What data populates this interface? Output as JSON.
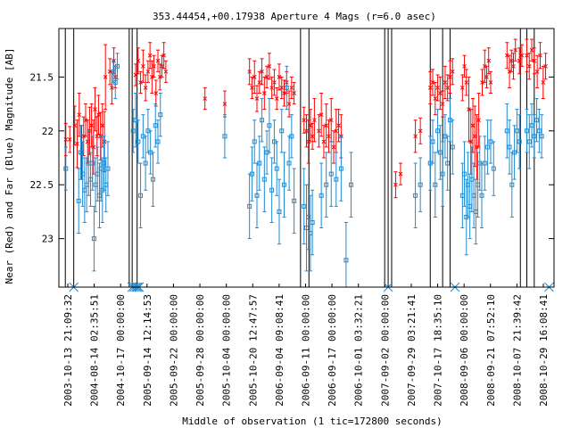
{
  "chart_data": {
    "type": "scatter",
    "title": "353.44454,+00.17938   Aperture 4 Mags (r=6.0 asec)",
    "xlabel": "Middle of observation (1 tic=172800 seconds)",
    "ylabel": "Near (Red) and Far (Blue) Magnitude [AB]",
    "y_inverted": true,
    "ylim": [
      23.45,
      21.05
    ],
    "y_ticks": [
      21.5,
      22,
      22.5,
      23
    ],
    "y_tick_labels": [
      "21.5",
      "22",
      "22.5",
      "23"
    ],
    "x_tick_labels": [
      "2003-10-13 21:09:32",
      "2004-08-14 02:35:51",
      "2004-10-17 00:00:00",
      "2005-09-14 12:14:53",
      "2005-09-22 00:00:00",
      "2005-09-28 00:00:00",
      "2005-10-04 00:00:00",
      "2005-10-20 12:47:57",
      "2006-09-04 09:08:41",
      "2006-09-11 00:00:00",
      "2006-09-17 00:00:00",
      "2006-10-01 03:32:21",
      "2007-09-02 00:00:00",
      "2007-09-29 03:21:41",
      "2007-10-17 18:35:10",
      "2008-09-06 00:00:00",
      "2008-09-21 07:52:10",
      "2008-10-07 21:39:42",
      "2008-10-29 16:08:41"
    ],
    "series": [
      {
        "name": "Near (Red)",
        "color": "#ff0000",
        "marker": "x",
        "points": [
          [
            0.014,
            22.08,
            0.15
          ],
          [
            0.022,
            22.08,
            0.12
          ],
          [
            0.032,
            21.95,
            0.18
          ],
          [
            0.037,
            22.12,
            0.22
          ],
          [
            0.041,
            21.85,
            0.2
          ],
          [
            0.046,
            22.2,
            0.25
          ],
          [
            0.05,
            22.05,
            0.18
          ],
          [
            0.054,
            21.9,
            0.15
          ],
          [
            0.058,
            22.1,
            0.2
          ],
          [
            0.062,
            22.0,
            0.22
          ],
          [
            0.066,
            21.95,
            0.2
          ],
          [
            0.07,
            22.15,
            0.25
          ],
          [
            0.073,
            21.8,
            0.2
          ],
          [
            0.077,
            22.05,
            0.18
          ],
          [
            0.08,
            21.85,
            0.18
          ],
          [
            0.084,
            22.05,
            0.22
          ],
          [
            0.088,
            21.95,
            0.2
          ],
          [
            0.092,
            22.1,
            0.28
          ],
          [
            0.094,
            21.5,
            0.3
          ],
          [
            0.103,
            21.45,
            0.12
          ],
          [
            0.107,
            21.6,
            0.15
          ],
          [
            0.111,
            21.35,
            0.12
          ],
          [
            0.114,
            21.5,
            0.1
          ],
          [
            0.155,
            21.48,
            0.1
          ],
          [
            0.16,
            21.35,
            0.12
          ],
          [
            0.165,
            21.55,
            0.1
          ],
          [
            0.17,
            21.4,
            0.15
          ],
          [
            0.175,
            21.6,
            0.12
          ],
          [
            0.18,
            21.45,
            0.1
          ],
          [
            0.184,
            21.3,
            0.12
          ],
          [
            0.188,
            21.5,
            0.15
          ],
          [
            0.192,
            21.4,
            0.1
          ],
          [
            0.196,
            21.65,
            0.12
          ],
          [
            0.2,
            21.35,
            0.1
          ],
          [
            0.204,
            21.5,
            0.12
          ],
          [
            0.208,
            21.4,
            0.1
          ],
          [
            0.212,
            21.3,
            0.12
          ],
          [
            0.216,
            21.45,
            0.1
          ],
          [
            0.295,
            21.7,
            0.1
          ],
          [
            0.335,
            21.75,
            0.12
          ],
          [
            0.385,
            21.45,
            0.12
          ],
          [
            0.39,
            21.6,
            0.1
          ],
          [
            0.395,
            21.5,
            0.15
          ],
          [
            0.4,
            21.7,
            0.12
          ],
          [
            0.405,
            21.55,
            0.1
          ],
          [
            0.41,
            21.45,
            0.12
          ],
          [
            0.415,
            21.65,
            0.15
          ],
          [
            0.42,
            21.5,
            0.1
          ],
          [
            0.425,
            21.4,
            0.12
          ],
          [
            0.43,
            21.6,
            0.1
          ],
          [
            0.435,
            21.55,
            0.12
          ],
          [
            0.44,
            21.7,
            0.1
          ],
          [
            0.445,
            21.5,
            0.12
          ],
          [
            0.45,
            21.6,
            0.1
          ],
          [
            0.455,
            21.65,
            0.12
          ],
          [
            0.46,
            21.55,
            0.1
          ],
          [
            0.465,
            21.75,
            0.12
          ],
          [
            0.47,
            21.6,
            0.1
          ],
          [
            0.475,
            21.65,
            0.1
          ],
          [
            0.495,
            21.9,
            0.12
          ],
          [
            0.5,
            22.0,
            0.15
          ],
          [
            0.504,
            22.1,
            0.2
          ],
          [
            0.508,
            21.95,
            0.15
          ],
          [
            0.512,
            22.05,
            0.12
          ],
          [
            0.516,
            21.9,
            0.2
          ],
          [
            0.525,
            22.0,
            0.15
          ],
          [
            0.53,
            21.85,
            0.2
          ],
          [
            0.535,
            22.1,
            0.15
          ],
          [
            0.54,
            21.95,
            0.2
          ],
          [
            0.545,
            22.05,
            0.15
          ],
          [
            0.55,
            21.9,
            0.2
          ],
          [
            0.555,
            22.15,
            0.15
          ],
          [
            0.56,
            22.0,
            0.2
          ],
          [
            0.565,
            21.95,
            0.15
          ],
          [
            0.57,
            22.05,
            0.2
          ],
          [
            0.68,
            22.5,
            0.12
          ],
          [
            0.69,
            22.4,
            0.1
          ],
          [
            0.72,
            22.05,
            0.15
          ],
          [
            0.73,
            22.0,
            0.12
          ],
          [
            0.75,
            21.6,
            0.15
          ],
          [
            0.755,
            21.55,
            0.12
          ],
          [
            0.76,
            21.7,
            0.15
          ],
          [
            0.765,
            21.6,
            0.12
          ],
          [
            0.77,
            21.65,
            0.15
          ],
          [
            0.775,
            21.75,
            0.12
          ],
          [
            0.78,
            21.55,
            0.15
          ],
          [
            0.785,
            21.6,
            0.12
          ],
          [
            0.79,
            21.5,
            0.15
          ],
          [
            0.795,
            21.45,
            0.12
          ],
          [
            0.815,
            21.6,
            0.12
          ],
          [
            0.819,
            21.4,
            0.1
          ],
          [
            0.823,
            21.55,
            0.12
          ],
          [
            0.828,
            21.8,
            0.3
          ],
          [
            0.832,
            22.1,
            0.3
          ],
          [
            0.836,
            21.95,
            0.25
          ],
          [
            0.84,
            22.05,
            0.28
          ],
          [
            0.844,
            22.15,
            0.3
          ],
          [
            0.848,
            21.9,
            0.25
          ],
          [
            0.855,
            21.55,
            0.12
          ],
          [
            0.86,
            21.4,
            0.15
          ],
          [
            0.864,
            21.5,
            0.1
          ],
          [
            0.868,
            21.35,
            0.12
          ],
          [
            0.872,
            21.55,
            0.1
          ],
          [
            0.905,
            21.3,
            0.12
          ],
          [
            0.91,
            21.45,
            0.15
          ],
          [
            0.914,
            21.35,
            0.1
          ],
          [
            0.918,
            21.4,
            0.12
          ],
          [
            0.922,
            21.25,
            0.1
          ],
          [
            0.93,
            21.35,
            0.12
          ],
          [
            0.935,
            21.3,
            0.1
          ],
          [
            0.945,
            21.3,
            0.15
          ],
          [
            0.95,
            21.4,
            0.12
          ],
          [
            0.955,
            21.25,
            0.1
          ],
          [
            0.96,
            21.35,
            0.12
          ],
          [
            0.966,
            21.45,
            0.15
          ],
          [
            0.972,
            21.3,
            0.12
          ],
          [
            0.978,
            21.55,
            0.15
          ],
          [
            0.983,
            21.4,
            0.12
          ]
        ]
      },
      {
        "name": "Far (Blue)",
        "color": "#1f8ad1",
        "marker": "square",
        "points": [
          [
            0.014,
            22.35,
            0.2
          ],
          [
            0.04,
            22.65,
            0.3
          ],
          [
            0.044,
            22.2,
            0.25
          ],
          [
            0.048,
            22.4,
            0.3
          ],
          [
            0.052,
            22.55,
            0.3
          ],
          [
            0.056,
            22.5,
            0.25
          ],
          [
            0.06,
            22.3,
            0.3
          ],
          [
            0.064,
            22.45,
            0.25
          ],
          [
            0.068,
            22.3,
            0.25
          ],
          [
            0.071,
            23.0,
            0.3
          ],
          [
            0.074,
            22.5,
            0.25
          ],
          [
            0.078,
            22.4,
            0.25
          ],
          [
            0.082,
            22.6,
            0.3
          ],
          [
            0.085,
            22.35,
            0.3
          ],
          [
            0.088,
            22.55,
            0.3
          ],
          [
            0.091,
            22.3,
            0.25
          ],
          [
            0.095,
            22.5,
            0.25
          ],
          [
            0.099,
            22.35,
            0.25
          ],
          [
            0.11,
            21.45,
            0.1
          ],
          [
            0.114,
            21.55,
            0.15
          ],
          [
            0.118,
            21.4,
            0.12
          ],
          [
            0.15,
            22.0,
            0.2
          ],
          [
            0.155,
            21.9,
            0.25
          ],
          [
            0.16,
            22.1,
            0.2
          ],
          [
            0.165,
            22.6,
            0.3
          ],
          [
            0.17,
            22.05,
            0.2
          ],
          [
            0.175,
            22.3,
            0.25
          ],
          [
            0.18,
            22.0,
            0.2
          ],
          [
            0.185,
            22.2,
            0.2
          ],
          [
            0.19,
            22.45,
            0.25
          ],
          [
            0.195,
            21.95,
            0.2
          ],
          [
            0.2,
            22.1,
            0.2
          ],
          [
            0.205,
            21.85,
            0.2
          ],
          [
            0.335,
            22.05,
            0.2
          ],
          [
            0.385,
            22.7,
            0.3
          ],
          [
            0.39,
            22.4,
            0.25
          ],
          [
            0.395,
            22.1,
            0.2
          ],
          [
            0.4,
            22.6,
            0.3
          ],
          [
            0.405,
            22.3,
            0.25
          ],
          [
            0.41,
            21.9,
            0.2
          ],
          [
            0.415,
            22.45,
            0.3
          ],
          [
            0.42,
            22.2,
            0.2
          ],
          [
            0.425,
            21.95,
            0.25
          ],
          [
            0.43,
            22.55,
            0.3
          ],
          [
            0.435,
            22.1,
            0.2
          ],
          [
            0.44,
            22.35,
            0.25
          ],
          [
            0.445,
            22.75,
            0.3
          ],
          [
            0.45,
            22.0,
            0.2
          ],
          [
            0.455,
            22.5,
            0.3
          ],
          [
            0.46,
            21.6,
            0.2
          ],
          [
            0.465,
            22.3,
            0.25
          ],
          [
            0.47,
            22.05,
            0.2
          ],
          [
            0.475,
            22.65,
            0.3
          ],
          [
            0.495,
            22.7,
            0.35
          ],
          [
            0.5,
            22.9,
            0.4
          ],
          [
            0.504,
            22.8,
            0.3
          ],
          [
            0.508,
            22.95,
            0.35
          ],
          [
            0.512,
            22.85,
            0.3
          ],
          [
            0.53,
            22.6,
            0.3
          ],
          [
            0.54,
            22.5,
            0.3
          ],
          [
            0.55,
            22.4,
            0.3
          ],
          [
            0.56,
            22.45,
            0.25
          ],
          [
            0.57,
            22.35,
            0.3
          ],
          [
            0.58,
            23.2,
            0.35
          ],
          [
            0.59,
            22.5,
            0.3
          ],
          [
            0.72,
            22.6,
            0.3
          ],
          [
            0.73,
            22.5,
            0.25
          ],
          [
            0.75,
            22.3,
            0.25
          ],
          [
            0.755,
            22.1,
            0.2
          ],
          [
            0.76,
            22.5,
            0.3
          ],
          [
            0.765,
            22.0,
            0.2
          ],
          [
            0.77,
            22.2,
            0.25
          ],
          [
            0.775,
            22.4,
            0.3
          ],
          [
            0.78,
            22.05,
            0.2
          ],
          [
            0.785,
            22.3,
            0.25
          ],
          [
            0.79,
            21.9,
            0.2
          ],
          [
            0.795,
            22.15,
            0.25
          ],
          [
            0.815,
            22.6,
            0.3
          ],
          [
            0.819,
            22.4,
            0.3
          ],
          [
            0.823,
            22.8,
            0.35
          ],
          [
            0.826,
            22.5,
            0.3
          ],
          [
            0.83,
            22.7,
            0.3
          ],
          [
            0.834,
            22.45,
            0.3
          ],
          [
            0.838,
            22.6,
            0.3
          ],
          [
            0.842,
            22.75,
            0.3
          ],
          [
            0.846,
            22.5,
            0.3
          ],
          [
            0.85,
            22.3,
            0.25
          ],
          [
            0.854,
            22.6,
            0.3
          ],
          [
            0.86,
            22.3,
            0.25
          ],
          [
            0.866,
            22.15,
            0.25
          ],
          [
            0.872,
            22.1,
            0.2
          ],
          [
            0.878,
            22.35,
            0.25
          ],
          [
            0.905,
            22.0,
            0.25
          ],
          [
            0.91,
            22.15,
            0.25
          ],
          [
            0.915,
            22.5,
            0.3
          ],
          [
            0.92,
            22.2,
            0.25
          ],
          [
            0.925,
            22.0,
            0.2
          ],
          [
            0.93,
            22.1,
            0.25
          ],
          [
            0.945,
            22.0,
            0.2
          ],
          [
            0.95,
            22.1,
            0.25
          ],
          [
            0.955,
            21.95,
            0.2
          ],
          [
            0.96,
            22.05,
            0.2
          ],
          [
            0.965,
            21.9,
            0.2
          ],
          [
            0.97,
            22.0,
            0.2
          ],
          [
            0.975,
            22.05,
            0.2
          ]
        ]
      }
    ],
    "vertical_lines_x": [
      0.013,
      0.03,
      0.142,
      0.148,
      0.158,
      0.488,
      0.505,
      0.658,
      0.665,
      0.672,
      0.75,
      0.775,
      0.79,
      0.932,
      0.945,
      0.96
    ],
    "bottom_markers_x": [
      0.03,
      0.148,
      0.152,
      0.156,
      0.159,
      0.162,
      0.665,
      0.8,
      0.99
    ],
    "grid": false,
    "legend": "none"
  }
}
